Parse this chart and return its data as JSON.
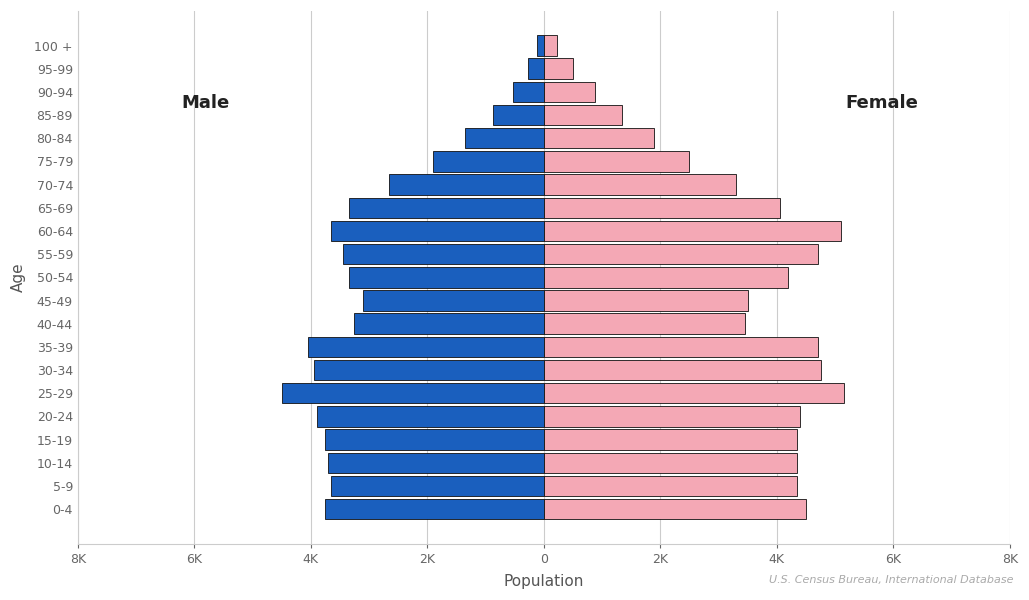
{
  "age_groups": [
    "0-4",
    "5-9",
    "10-14",
    "15-19",
    "20-24",
    "25-29",
    "30-34",
    "35-39",
    "40-44",
    "45-49",
    "50-54",
    "55-59",
    "60-64",
    "65-69",
    "70-74",
    "75-79",
    "80-84",
    "85-89",
    "90-94",
    "95-99",
    "100 +"
  ],
  "male": [
    3750,
    3650,
    3700,
    3750,
    3900,
    4500,
    3950,
    4050,
    3250,
    3100,
    3350,
    3450,
    3650,
    3350,
    2650,
    1900,
    1350,
    870,
    530,
    280,
    110
  ],
  "female": [
    4500,
    4350,
    4350,
    4350,
    4400,
    5150,
    4750,
    4700,
    3450,
    3500,
    4200,
    4700,
    5100,
    4050,
    3300,
    2500,
    1900,
    1350,
    880,
    500,
    220
  ],
  "male_color": "#1a5fbe",
  "female_color": "#f4a8b5",
  "bar_edge_color": "#111111",
  "bar_linewidth": 0.6,
  "xlabel": "Population",
  "ylabel": "Age",
  "xlim": 8000,
  "xtick_values": [
    -8000,
    -6000,
    -4000,
    -2000,
    0,
    2000,
    4000,
    6000,
    8000
  ],
  "xtick_labels": [
    "8K",
    "6K",
    "4K",
    "2K",
    "0",
    "2K",
    "4K",
    "6K",
    "8K"
  ],
  "male_label": "Male",
  "female_label": "Female",
  "source_text": "U.S. Census Bureau, International Database",
  "background_color": "#ffffff",
  "grid_color": "#cccccc"
}
